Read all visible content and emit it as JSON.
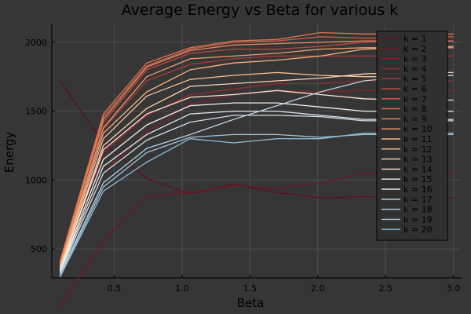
{
  "chart_data": {
    "type": "line",
    "title": "Average Energy vs Beta for various k",
    "xlabel": "Beta",
    "ylabel": "Energy",
    "xlim": [
      0.04,
      3.06
    ],
    "ylim": [
      290,
      2130
    ],
    "xticks": [
      {
        "value": 0.5,
        "label": "0.5"
      },
      {
        "value": 1.0,
        "label": "1.0"
      },
      {
        "value": 1.5,
        "label": "1.5"
      },
      {
        "value": 2.0,
        "label": "2.0"
      },
      {
        "value": 2.5,
        "label": "2.5"
      },
      {
        "value": 3.0,
        "label": "3.0"
      }
    ],
    "yticks": [
      {
        "value": 500,
        "label": "500"
      },
      {
        "value": 1000,
        "label": "1000"
      },
      {
        "value": 1500,
        "label": "1500"
      },
      {
        "value": 2000,
        "label": "2000"
      }
    ],
    "grid": true,
    "legend_position": "top-right",
    "x": [
      0.1,
      0.42,
      0.74,
      1.06,
      1.38,
      1.7,
      2.02,
      2.34,
      2.66,
      3.0
    ],
    "series": [
      {
        "name": "k = 1",
        "color": "#5e0f21",
        "values": [
          1720,
          1270,
          1010,
          900,
          970,
          910,
          870,
          880,
          870,
          870
        ]
      },
      {
        "name": "k = 2",
        "color": "#701727",
        "values": [
          80,
          560,
          880,
          910,
          960,
          940,
          980,
          1050,
          1050,
          1060
        ]
      },
      {
        "name": "k = 3",
        "color": "#84202c",
        "values": [
          340,
          1050,
          1350,
          1550,
          1620,
          1650,
          1640,
          1650,
          1650,
          1650
        ]
      },
      {
        "name": "k = 4",
        "color": "#982a32",
        "values": [
          360,
          1200,
          1470,
          1620,
          1660,
          1700,
          1700,
          1720,
          1720,
          1720
        ]
      },
      {
        "name": "k = 5",
        "color": "#ab3a39",
        "values": [
          380,
          1370,
          1720,
          1840,
          1880,
          1900,
          1900,
          1900,
          1900,
          1900
        ]
      },
      {
        "name": "k = 6",
        "color": "#bc4b40",
        "values": [
          390,
          1420,
          1800,
          1920,
          1950,
          1950,
          1970,
          2000,
          2010,
          2010
        ]
      },
      {
        "name": "k = 7",
        "color": "#cc5f48",
        "values": [
          400,
          1460,
          1830,
          1950,
          2000,
          2010,
          2040,
          2030,
          2030,
          2040
        ]
      },
      {
        "name": "k = 8",
        "color": "#da7352",
        "values": [
          410,
          1480,
          1850,
          1960,
          2010,
          2020,
          2070,
          2060,
          2060,
          2060
        ]
      },
      {
        "name": "k = 9",
        "color": "#e5885e",
        "values": [
          395,
          1440,
          1820,
          1940,
          1980,
          1990,
          2000,
          2010,
          2010,
          2010
        ]
      },
      {
        "name": "k = 10",
        "color": "#ee9c6c",
        "values": [
          380,
          1380,
          1750,
          1880,
          1900,
          1920,
          1950,
          1960,
          1960,
          1960
        ]
      },
      {
        "name": "k = 11",
        "color": "#f4b080",
        "values": [
          370,
          1340,
          1640,
          1800,
          1850,
          1870,
          1900,
          1950,
          1960,
          1970
        ]
      },
      {
        "name": "k = 12",
        "color": "#f8c39a",
        "values": [
          360,
          1300,
          1610,
          1730,
          1760,
          1780,
          1760,
          1750,
          1750,
          1760
        ]
      },
      {
        "name": "k = 13",
        "color": "#fbd3b6",
        "values": [
          350,
          1250,
          1520,
          1680,
          1700,
          1720,
          1740,
          1770,
          1780,
          1780
        ]
      },
      {
        "name": "k = 14",
        "color": "#fde2d2",
        "values": [
          345,
          1220,
          1480,
          1600,
          1620,
          1650,
          1620,
          1590,
          1580,
          1580
        ]
      },
      {
        "name": "k = 15",
        "color": "#f4f0ee",
        "values": [
          340,
          1150,
          1400,
          1540,
          1560,
          1560,
          1530,
          1500,
          1500,
          1500
        ]
      },
      {
        "name": "k = 16",
        "color": "#e3e8ec",
        "values": [
          335,
          1100,
          1330,
          1480,
          1500,
          1500,
          1470,
          1440,
          1440,
          1440
        ]
      },
      {
        "name": "k = 17",
        "color": "#cfdfe8",
        "values": [
          325,
          1050,
          1290,
          1420,
          1470,
          1470,
          1460,
          1430,
          1430,
          1430
        ]
      },
      {
        "name": "k = 18",
        "color": "#b9d3e2",
        "values": [
          315,
          980,
          1230,
          1330,
          1440,
          1540,
          1640,
          1720,
          1750,
          1760
        ]
      },
      {
        "name": "k = 19",
        "color": "#a3c5da",
        "values": [
          305,
          950,
          1200,
          1310,
          1330,
          1330,
          1310,
          1330,
          1330,
          1330
        ]
      },
      {
        "name": "k = 20",
        "color": "#8fb8d2",
        "values": [
          295,
          920,
          1130,
          1300,
          1270,
          1300,
          1300,
          1340,
          1340,
          1340
        ]
      }
    ]
  }
}
